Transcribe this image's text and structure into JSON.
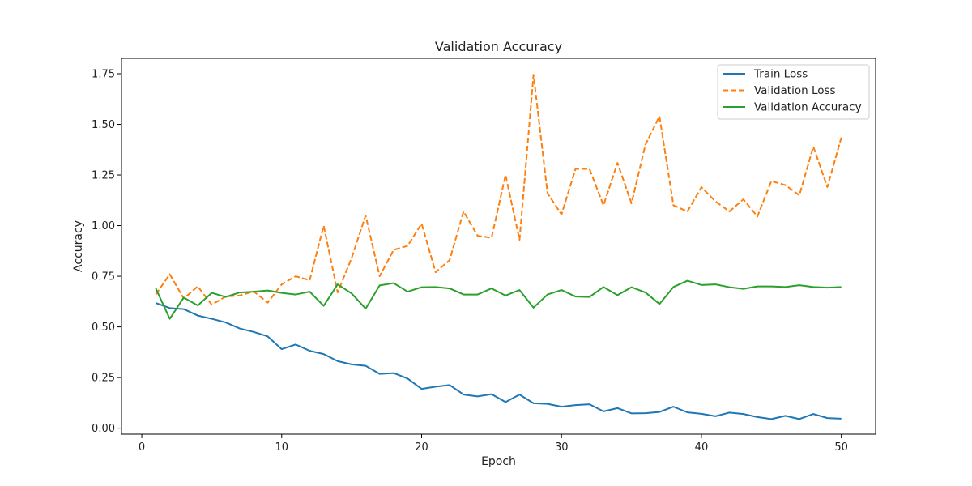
{
  "chart_data": {
    "type": "line",
    "title": "Validation Accuracy",
    "xlabel": "Epoch",
    "ylabel": "Accuracy",
    "xlim": [
      -1.45,
      52.45
    ],
    "ylim": [
      -0.0295,
      1.826
    ],
    "xticks": [
      0,
      10,
      20,
      30,
      40,
      50
    ],
    "yticks": [
      0.0,
      0.25,
      0.5,
      0.75,
      1.0,
      1.25,
      1.5,
      1.75
    ],
    "ytick_labels": [
      "0.00",
      "0.25",
      "0.50",
      "0.75",
      "1.00",
      "1.25",
      "1.50",
      "1.75"
    ],
    "grid": false,
    "legend_position": "top-right",
    "x": [
      1,
      2,
      3,
      4,
      5,
      6,
      7,
      8,
      9,
      10,
      11,
      12,
      13,
      14,
      15,
      16,
      17,
      18,
      19,
      20,
      21,
      22,
      23,
      24,
      25,
      26,
      27,
      28,
      29,
      30,
      31,
      32,
      33,
      34,
      35,
      36,
      37,
      38,
      39,
      40,
      41,
      42,
      43,
      44,
      45,
      46,
      47,
      48,
      49,
      50
    ],
    "series": [
      {
        "name": "Train Loss",
        "color": "#1f77b4",
        "dash": "solid",
        "values": [
          0.618,
          0.593,
          0.588,
          0.556,
          0.54,
          0.522,
          0.492,
          0.475,
          0.453,
          0.39,
          0.413,
          0.382,
          0.366,
          0.331,
          0.315,
          0.308,
          0.268,
          0.272,
          0.245,
          0.194,
          0.205,
          0.213,
          0.166,
          0.157,
          0.168,
          0.129,
          0.166,
          0.123,
          0.12,
          0.106,
          0.114,
          0.118,
          0.083,
          0.099,
          0.073,
          0.074,
          0.08,
          0.106,
          0.078,
          0.071,
          0.059,
          0.077,
          0.07,
          0.055,
          0.045,
          0.061,
          0.045,
          0.07,
          0.05,
          0.047
        ]
      },
      {
        "name": "Validation Loss",
        "color": "#ff7f0e",
        "dash": "dashed",
        "values": [
          0.66,
          0.76,
          0.64,
          0.7,
          0.61,
          0.65,
          0.655,
          0.675,
          0.62,
          0.71,
          0.75,
          0.73,
          1.0,
          0.67,
          0.84,
          1.05,
          0.75,
          0.88,
          0.9,
          1.01,
          0.77,
          0.83,
          1.07,
          0.95,
          0.94,
          1.25,
          0.93,
          1.745,
          1.16,
          1.055,
          1.28,
          1.28,
          1.1,
          1.31,
          1.11,
          1.4,
          1.54,
          1.1,
          1.07,
          1.19,
          1.12,
          1.07,
          1.13,
          1.045,
          1.22,
          1.2,
          1.15,
          1.39,
          1.19,
          1.435
        ]
      },
      {
        "name": "Validation Accuracy",
        "color": "#2ca02c",
        "dash": "solid",
        "values": [
          0.69,
          0.54,
          0.645,
          0.606,
          0.668,
          0.648,
          0.67,
          0.674,
          0.68,
          0.668,
          0.66,
          0.674,
          0.604,
          0.71,
          0.665,
          0.59,
          0.705,
          0.716,
          0.674,
          0.696,
          0.697,
          0.69,
          0.66,
          0.66,
          0.69,
          0.655,
          0.682,
          0.595,
          0.66,
          0.682,
          0.65,
          0.648,
          0.697,
          0.657,
          0.696,
          0.67,
          0.613,
          0.697,
          0.728,
          0.707,
          0.71,
          0.696,
          0.688,
          0.7,
          0.7,
          0.697,
          0.706,
          0.697,
          0.694,
          0.697
        ]
      }
    ]
  }
}
